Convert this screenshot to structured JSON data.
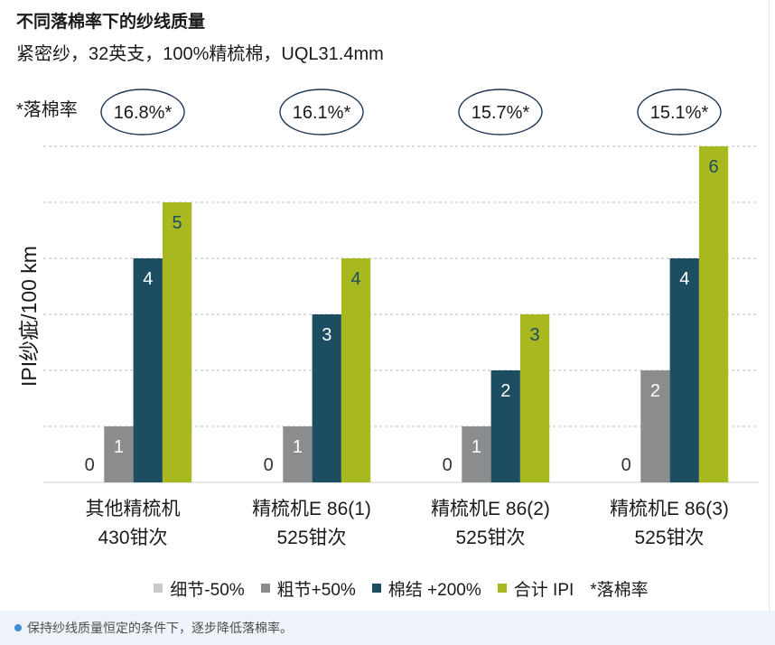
{
  "caption": "保持纱线质量恒定的条件下，逐步降低落棉率。",
  "colors": {
    "ellipse_stroke": "#1e3654",
    "caption_bg": "#eef3f9",
    "bullet": "#3b8fd9",
    "zero_label": "#333333"
  },
  "chart_data": {
    "type": "bar",
    "title": "不同落棉率下的纱线质量",
    "subtitle": "紧密纱，32英支，100%精梳棉，UQL31.4mm",
    "xlabel": "",
    "ylabel": "IPI纱疵/100 km",
    "ylim": [
      0,
      6
    ],
    "grid": true,
    "legend": "bottom",
    "noil_label": "*落棉率",
    "noil_rates": [
      "16.8%*",
      "16.1%*",
      "15.7%*",
      "15.1%*"
    ],
    "categories": [
      [
        "其他精梳机",
        "430钳次"
      ],
      [
        "精梳机E 86(1)",
        "525钳次"
      ],
      [
        "精梳机E 86(2)",
        "525钳次"
      ],
      [
        "精梳机E 86(3)",
        "525钳次"
      ]
    ],
    "series": [
      {
        "name": "细节-50%",
        "color": "#c9c9c9",
        "values": [
          0,
          0,
          0,
          0
        ]
      },
      {
        "name": "粗节+50%",
        "color": "#8b8c8e",
        "values": [
          1,
          1,
          1,
          2
        ]
      },
      {
        "name": "棉结 +200%",
        "color": "#1c4d61",
        "values": [
          4,
          3,
          2,
          4
        ]
      },
      {
        "name": "合计 IPI",
        "color": "#a8b91f",
        "values": [
          5,
          4,
          3,
          6
        ]
      }
    ]
  }
}
